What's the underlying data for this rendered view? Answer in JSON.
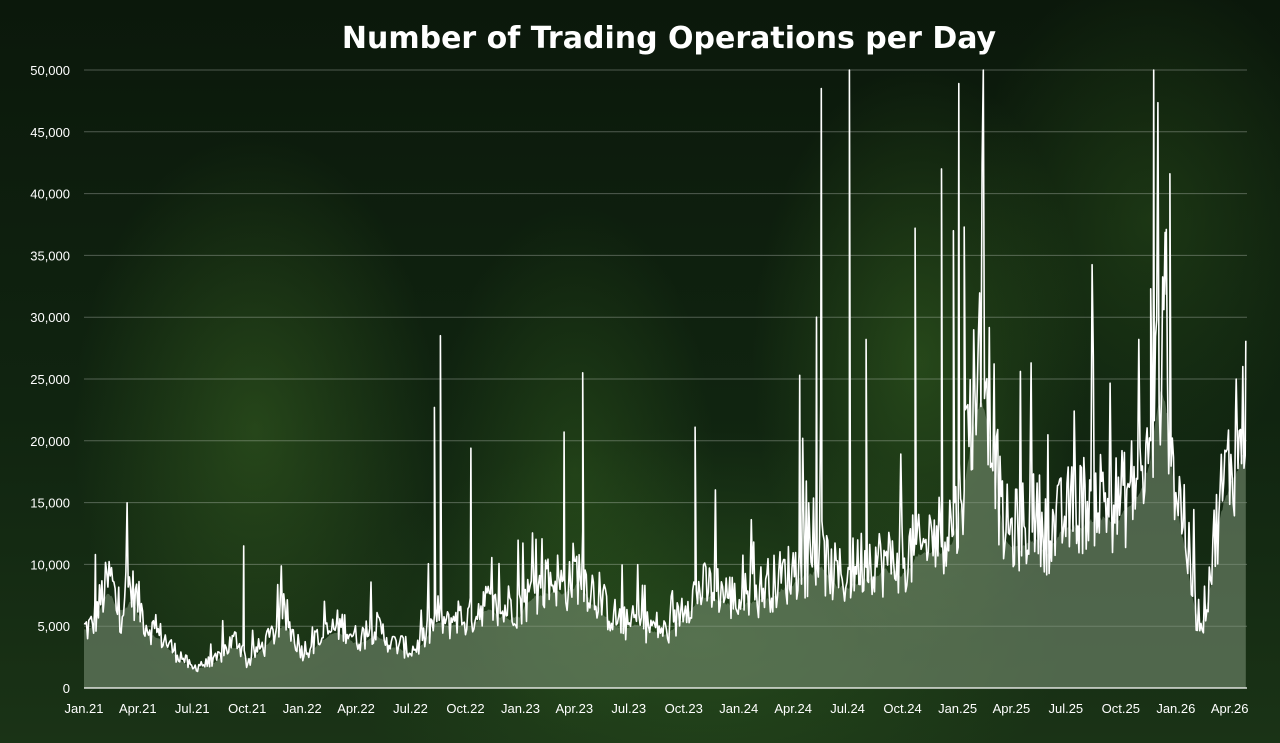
{
  "chart_data": {
    "type": "area",
    "title": "Number of Trading Operations per Day",
    "xlabel": "",
    "ylabel": "",
    "x_range": [
      "2021-01-01",
      "2026-04-30"
    ],
    "ylim": [
      0,
      50000
    ],
    "y_ticks": [
      0,
      5000,
      10000,
      15000,
      20000,
      25000,
      30000,
      35000,
      40000,
      45000,
      50000
    ],
    "y_tick_labels": [
      "0",
      "5,000",
      "10,000",
      "15,000",
      "20,000",
      "25,000",
      "30,000",
      "35,000",
      "40,000",
      "45,000",
      "50,000"
    ],
    "x_ticks": [
      {
        "date": "2021-01-01",
        "label": "Jan.21"
      },
      {
        "date": "2021-04-01",
        "label": "Apr.21"
      },
      {
        "date": "2021-07-01",
        "label": "Jul.21"
      },
      {
        "date": "2021-10-01",
        "label": "Oct.21"
      },
      {
        "date": "2022-01-01",
        "label": "Jan.22"
      },
      {
        "date": "2022-04-01",
        "label": "Apr.22"
      },
      {
        "date": "2022-07-01",
        "label": "Jul.22"
      },
      {
        "date": "2022-10-01",
        "label": "Oct.22"
      },
      {
        "date": "2023-01-01",
        "label": "Jan.23"
      },
      {
        "date": "2023-04-01",
        "label": "Apr.23"
      },
      {
        "date": "2023-07-01",
        "label": "Jul.23"
      },
      {
        "date": "2023-10-01",
        "label": "Oct.23"
      },
      {
        "date": "2024-01-01",
        "label": "Jan.24"
      },
      {
        "date": "2024-04-01",
        "label": "Apr.24"
      },
      {
        "date": "2024-07-01",
        "label": "Jul.24"
      },
      {
        "date": "2024-10-01",
        "label": "Oct.24"
      },
      {
        "date": "2025-01-01",
        "label": "Jan.25"
      },
      {
        "date": "2025-04-01",
        "label": "Apr.25"
      },
      {
        "date": "2025-07-01",
        "label": "Jul.25"
      },
      {
        "date": "2025-10-01",
        "label": "Oct.25"
      },
      {
        "date": "2026-01-01",
        "label": "Jan.26"
      },
      {
        "date": "2026-04-01",
        "label": "Apr.26"
      }
    ],
    "grid": true,
    "legend": "none",
    "series": [
      {
        "x": [
          "2021-01-01",
          "2021-01-15",
          "2021-02-01",
          "2021-02-15",
          "2021-03-01",
          "2021-03-15",
          "2021-04-01",
          "2021-04-15",
          "2021-05-01",
          "2021-05-15",
          "2021-06-01",
          "2021-06-15",
          "2021-07-01",
          "2021-07-15",
          "2021-08-01",
          "2021-08-15",
          "2021-09-01",
          "2021-09-15",
          "2021-10-01",
          "2021-10-15",
          "2021-11-01",
          "2021-11-15",
          "2021-12-01",
          "2021-12-15",
          "2022-01-01",
          "2022-01-15",
          "2022-02-01",
          "2022-02-15",
          "2022-03-01",
          "2022-03-15",
          "2022-04-01",
          "2022-04-15",
          "2022-05-01",
          "2022-05-15",
          "2022-06-01",
          "2022-06-15",
          "2022-07-01",
          "2022-07-15",
          "2022-08-01",
          "2022-08-15",
          "2022-09-01",
          "2022-09-15",
          "2022-10-01",
          "2022-10-15",
          "2022-11-01",
          "2022-11-15",
          "2022-12-01",
          "2022-12-15",
          "2023-01-01",
          "2023-01-15",
          "2023-02-01",
          "2023-02-15",
          "2023-03-01",
          "2023-03-15",
          "2023-04-01",
          "2023-04-15",
          "2023-05-01",
          "2023-05-15",
          "2023-06-01",
          "2023-06-15",
          "2023-07-01",
          "2023-07-15",
          "2023-08-01",
          "2023-08-15",
          "2023-09-01",
          "2023-09-15",
          "2023-10-01",
          "2023-10-15",
          "2023-11-01",
          "2023-11-15",
          "2023-12-01",
          "2023-12-15",
          "2024-01-01",
          "2024-01-15",
          "2024-02-01",
          "2024-02-15",
          "2024-03-01",
          "2024-03-15",
          "2024-04-01",
          "2024-04-15",
          "2024-05-01",
          "2024-05-15",
          "2024-06-01",
          "2024-06-15",
          "2024-07-01",
          "2024-07-15",
          "2024-08-01",
          "2024-08-15",
          "2024-09-01",
          "2024-09-15",
          "2024-10-01",
          "2024-10-15",
          "2024-11-01",
          "2024-11-15",
          "2024-12-01",
          "2024-12-15",
          "2025-01-01",
          "2025-01-15",
          "2025-02-01",
          "2025-02-15",
          "2025-03-01",
          "2025-03-15",
          "2025-04-01",
          "2025-04-15",
          "2025-05-01",
          "2025-05-15",
          "2025-06-01",
          "2025-06-15",
          "2025-07-01",
          "2025-07-15",
          "2025-08-01",
          "2025-08-15",
          "2025-09-01",
          "2025-09-15",
          "2025-10-01",
          "2025-10-15",
          "2025-11-01",
          "2025-11-15",
          "2025-12-01",
          "2025-12-15",
          "2026-01-01",
          "2026-01-15",
          "2026-02-01",
          "2026-02-15",
          "2026-03-01",
          "2026-03-15",
          "2026-04-01",
          "2026-04-15",
          "2026-04-28"
        ],
        "values": [
          4800,
          5000,
          7500,
          9000,
          5500,
          8500,
          7000,
          5200,
          4500,
          4000,
          3000,
          2500,
          1500,
          2000,
          1800,
          2500,
          3500,
          4000,
          2000,
          3000,
          3500,
          4500,
          6000,
          4500,
          3000,
          3500,
          4000,
          4500,
          5000,
          5000,
          4000,
          4200,
          5000,
          4500,
          3500,
          3500,
          3000,
          3500,
          4500,
          6000,
          5000,
          6000,
          5500,
          6000,
          7000,
          6500,
          6000,
          7000,
          6500,
          7500,
          8000,
          8500,
          9000,
          8000,
          9500,
          9000,
          8000,
          7000,
          6000,
          5500,
          5000,
          5500,
          5000,
          5000,
          4500,
          5000,
          7000,
          7500,
          8000,
          8000,
          8000,
          7500,
          7000,
          7500,
          7500,
          8500,
          8500,
          9000,
          9500,
          10000,
          10000,
          11000,
          9500,
          9000,
          9000,
          10000,
          10500,
          10500,
          10000,
          10500,
          10500,
          11000,
          11000,
          12000,
          12500,
          13000,
          14000,
          19000,
          26000,
          27000,
          22000,
          13500,
          12500,
          13000,
          13500,
          14000,
          12500,
          13000,
          14000,
          14500,
          15000,
          15500,
          15500,
          15000,
          15000,
          16000,
          17000,
          18000,
          25000,
          27000,
          16000,
          14000,
          6500,
          5500,
          10000,
          15000,
          18000,
          20000,
          22000
        ],
        "spikes": [
          {
            "x": "2021-01-20",
            "y": 10800
          },
          {
            "x": "2021-09-25",
            "y": 11500
          },
          {
            "x": "2022-08-20",
            "y": 28500
          },
          {
            "x": "2022-08-10",
            "y": 22700
          },
          {
            "x": "2022-10-10",
            "y": 19400
          },
          {
            "x": "2023-03-15",
            "y": 20700
          },
          {
            "x": "2023-04-15",
            "y": 25500
          },
          {
            "x": "2023-10-20",
            "y": 21100
          },
          {
            "x": "2024-04-12",
            "y": 25300
          },
          {
            "x": "2024-05-10",
            "y": 30000
          },
          {
            "x": "2024-05-18",
            "y": 48500
          },
          {
            "x": "2024-07-04",
            "y": 50000
          },
          {
            "x": "2024-08-01",
            "y": 28200
          },
          {
            "x": "2024-10-22",
            "y": 37200
          },
          {
            "x": "2024-12-05",
            "y": 42000
          },
          {
            "x": "2024-12-25",
            "y": 37000
          },
          {
            "x": "2025-01-03",
            "y": 48900
          },
          {
            "x": "2025-01-12",
            "y": 37300
          },
          {
            "x": "2025-11-25",
            "y": 50000
          },
          {
            "x": "2025-11-20",
            "y": 32300
          },
          {
            "x": "2025-12-22",
            "y": 41600
          },
          {
            "x": "2025-12-16",
            "y": 37100
          },
          {
            "x": "2026-04-12",
            "y": 25000
          },
          {
            "x": "2026-04-28",
            "y": 28100
          }
        ]
      }
    ],
    "colors": {
      "line": "#ffffff",
      "fill": "#7f957a",
      "grid": "#ffffff",
      "text": "#ffffff"
    }
  }
}
